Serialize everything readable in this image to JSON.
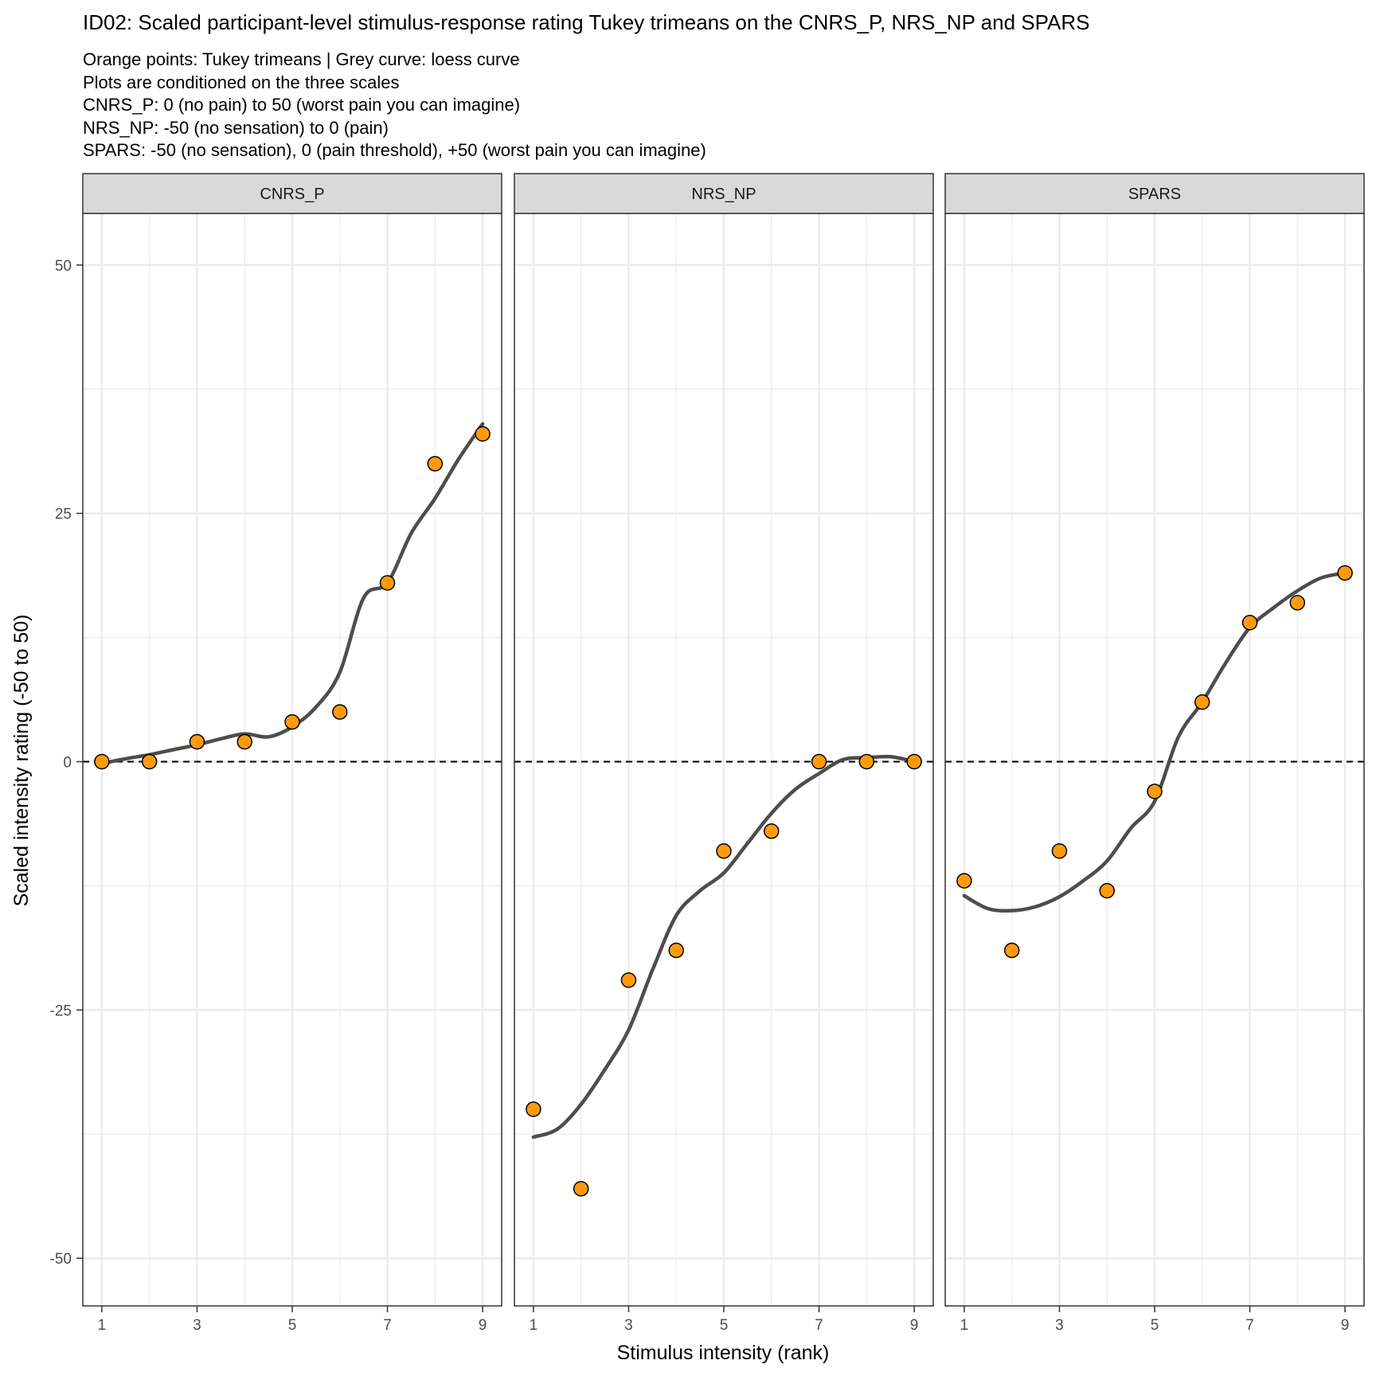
{
  "chart_data": {
    "type": "scatter",
    "title": "ID02: Scaled participant-level stimulus-response rating Tukey trimeans on the CNRS_P, NRS_NP and SPARS",
    "subtitle_lines": [
      "Orange points: Tukey trimeans | Grey curve: loess curve",
      "Plots are conditioned on the three scales",
      "CNRS_P: 0 (no pain) to 50 (worst pain you can imagine)",
      "NRS_NP: -50 (no sensation) to 0 (pain)",
      "SPARS: -50 (no sensation), 0 (pain threshold), +50 (worst pain you can imagine)"
    ],
    "xlabel": "Stimulus intensity (rank)",
    "ylabel": "Scaled intensity rating (-50 to 50)",
    "xlim": [
      0.6,
      9.4
    ],
    "ylim": [
      -54.8,
      55.2
    ],
    "x_ticks": [
      1,
      3,
      5,
      7,
      9
    ],
    "x_tick_labels": [
      "1",
      "3",
      "5",
      "7",
      "9"
    ],
    "y_ticks": [
      -50,
      -25,
      0,
      25,
      50
    ],
    "y_tick_labels": [
      "-50",
      "-25",
      "0",
      "25",
      "50"
    ],
    "grid": true,
    "reference_line_y": 0,
    "colors": {
      "point_fill": "#ff9a0d",
      "point_stroke": "#000000",
      "curve": "#4d4d4d",
      "strip_fill": "#d9d9d9",
      "grid": "#ebebeb",
      "panel_border": "#333333"
    },
    "panels": [
      {
        "name": "CNRS_P",
        "x": [
          1,
          2,
          3,
          4,
          5,
          6,
          7,
          8,
          9
        ],
        "y": [
          0,
          0,
          2,
          2,
          4,
          5,
          18,
          30,
          33
        ],
        "curve_x": [
          1,
          1.5,
          2,
          2.5,
          3,
          3.5,
          4,
          4.5,
          5,
          5.5,
          6,
          6.5,
          7,
          7.5,
          8,
          8.5,
          9
        ],
        "curve_y": [
          -0.2,
          0.3,
          0.7,
          1.2,
          1.7,
          2.3,
          2.8,
          2.5,
          3.5,
          5.5,
          9,
          16.5,
          18,
          23,
          26.5,
          30.5,
          34
        ]
      },
      {
        "name": "NRS_NP",
        "x": [
          1,
          2,
          3,
          4,
          5,
          6,
          7,
          8,
          9
        ],
        "y": [
          -35,
          -43,
          -22,
          -19,
          -9,
          -7,
          0,
          0,
          0
        ],
        "curve_x": [
          1,
          1.5,
          2,
          2.5,
          3,
          3.5,
          4,
          4.5,
          5,
          5.5,
          6,
          6.5,
          7,
          7.5,
          8,
          8.5,
          9
        ],
        "curve_y": [
          -37.8,
          -37.0,
          -34.5,
          -31.0,
          -27.0,
          -21.0,
          -15.5,
          -13.0,
          -11.2,
          -8.2,
          -5.2,
          -2.8,
          -1.2,
          0.2,
          0.4,
          0.5,
          0.0
        ]
      },
      {
        "name": "SPARS",
        "x": [
          1,
          2,
          3,
          4,
          5,
          6,
          7,
          8,
          9
        ],
        "y": [
          -12,
          -19,
          -9,
          -13,
          -3,
          6,
          14,
          16,
          19
        ],
        "curve_x": [
          1,
          1.5,
          2,
          2.5,
          3,
          3.5,
          4,
          4.5,
          5,
          5.5,
          6,
          6.5,
          7,
          7.5,
          8,
          8.5,
          9
        ],
        "curve_y": [
          -13.5,
          -14.8,
          -15.0,
          -14.6,
          -13.6,
          -12.0,
          -10.0,
          -6.7,
          -4.0,
          2.5,
          6.0,
          10.0,
          13.5,
          15.5,
          17.2,
          18.5,
          19.0
        ]
      }
    ]
  }
}
